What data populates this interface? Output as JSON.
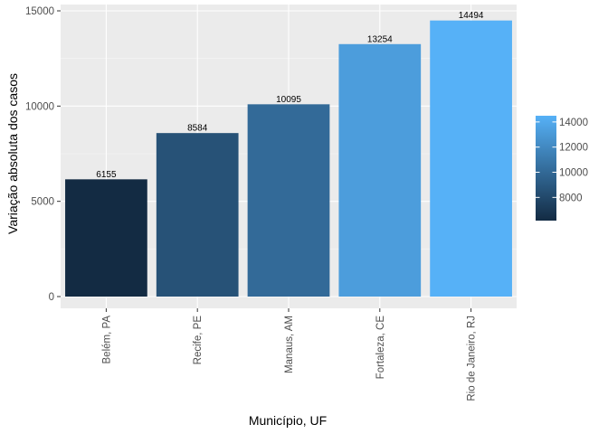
{
  "chart_data": {
    "type": "bar",
    "categories": [
      "Belém, PA",
      "Recife, PE",
      "Manaus, AM",
      "Fortaleza, CE",
      "Rio de Janeiro, RJ"
    ],
    "values": [
      6155,
      8584,
      10095,
      13254,
      14494
    ],
    "data_labels": [
      "6155",
      "8584",
      "10095",
      "13254",
      "14494"
    ],
    "xlabel": "Município, UF",
    "ylabel": "Variação absoluta dos casos",
    "ylim": [
      0,
      15000
    ],
    "y_ticks": [
      0,
      5000,
      10000,
      15000
    ],
    "y_tick_labels": [
      "0",
      "5000",
      "10000",
      "15000"
    ],
    "grid": true,
    "legend": {
      "placement": "right",
      "type": "colorbar",
      "range": [
        6155,
        14494
      ],
      "ticks": [
        8000,
        10000,
        12000,
        14000
      ],
      "tick_labels": [
        "8000",
        "10000",
        "12000",
        "14000"
      ],
      "color_low": "#132B43",
      "color_high": "#56B1F7"
    },
    "colors": {
      "panel_background": "#ebebeb",
      "grid_major": "#ffffff",
      "grid_minor": "#f5f5f5"
    }
  }
}
